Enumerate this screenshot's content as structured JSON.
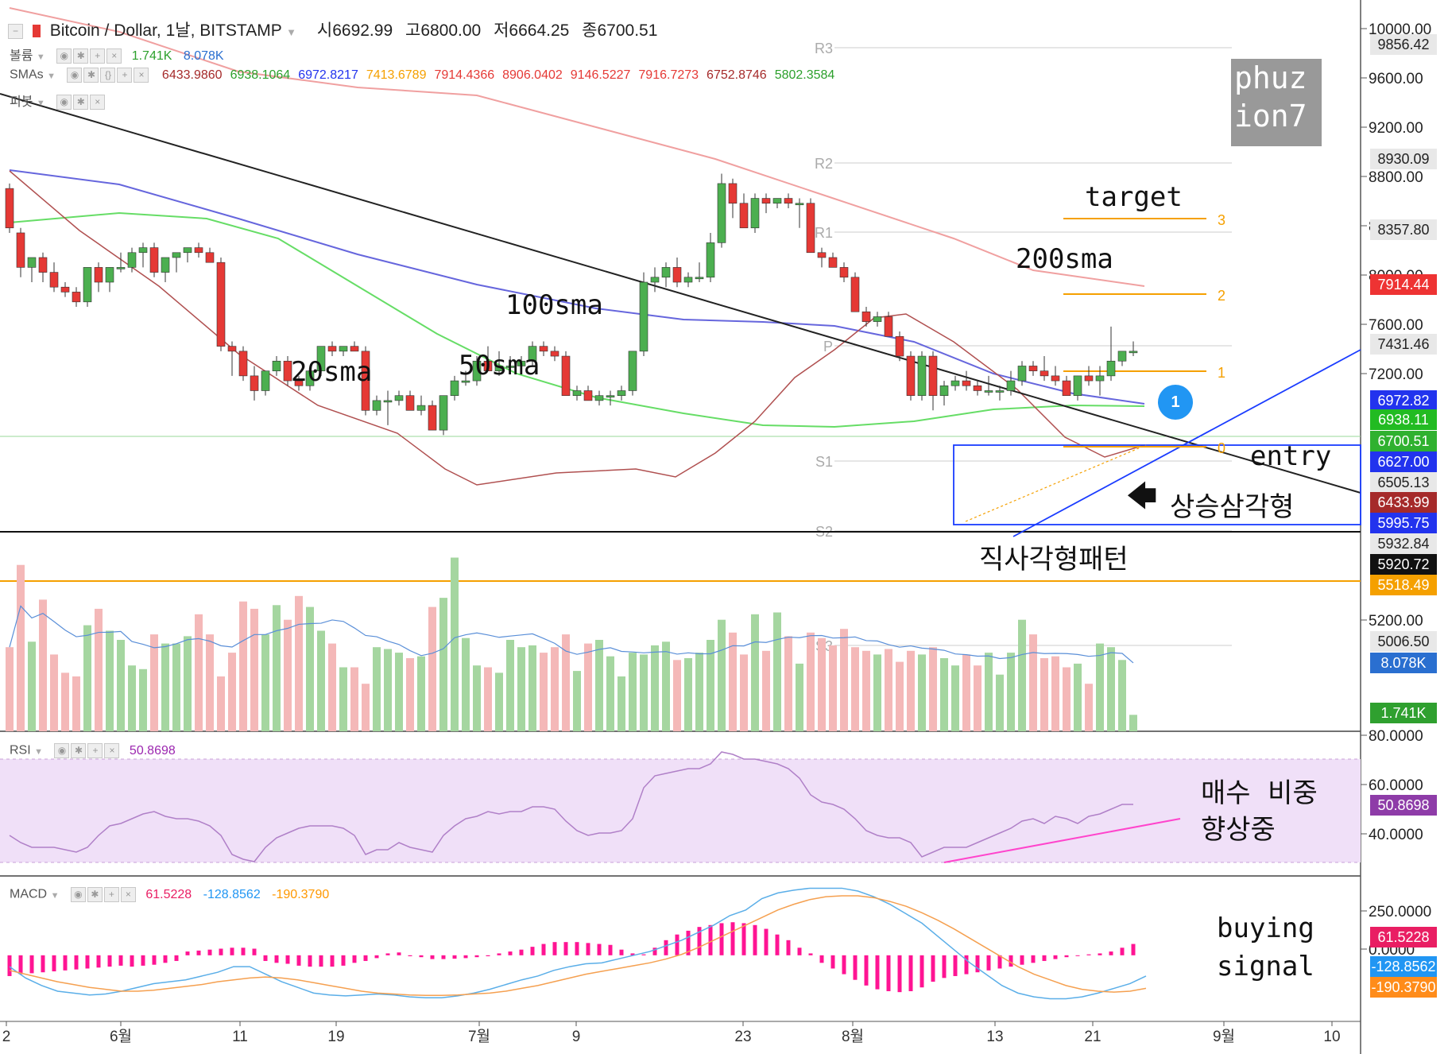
{
  "header": {
    "symbol": "Bitcoin / Dollar, 1날, BITSTAMP",
    "open_label": "시",
    "open": "6692.99",
    "high_label": "고",
    "high": "6800.00",
    "low_label": "저",
    "low": "6664.25",
    "close_label": "종",
    "close": "6700.51",
    "volume_label": "볼륨",
    "volume_a": "1.741K",
    "volume_b": "8.078K",
    "sma_label": "SMAs",
    "sma_values": [
      "6433.9860",
      "6938.1064",
      "6972.8217",
      "7413.6789",
      "7914.4366",
      "8906.0402",
      "9146.5227",
      "7916.7273",
      "6752.8746",
      "5802.3584"
    ],
    "pivot_label": "피봇",
    "rsi_label": "RSI",
    "rsi_value": "50.8698",
    "macd_label": "MACD",
    "macd_a": "61.5228",
    "macd_b": "-128.8562",
    "macd_c": "-190.3790"
  },
  "colors": {
    "up": "#4caf50",
    "down": "#e53935",
    "sma20": "#b05050",
    "sma50": "#66dd66",
    "sma100": "#6666dd",
    "sma200": "#f0a0a0",
    "rsi": "#b080c8",
    "macd_hist": "#ff1493",
    "macd_line": "#5aaee8",
    "signal_line": "#f5a050",
    "blue_trend": "#1a3cff",
    "orange_level": "#f5a000"
  },
  "price_axis": {
    "ticks": [
      "10000.00",
      "9600.00",
      "9200.00",
      "8800.00",
      "8400.00",
      "8000.00",
      "7600.00",
      "7200.00",
      "5200.00"
    ],
    "labels": [
      {
        "text": "9856.42",
        "bg": "#e8e8e8",
        "fg": "#222"
      },
      {
        "text": "8930.09",
        "bg": "#e8e8e8",
        "fg": "#222"
      },
      {
        "text": "8357.80",
        "bg": "#e8e8e8",
        "fg": "#222"
      },
      {
        "text": "7914.44",
        "bg": "#ee3333",
        "fg": "#fff"
      },
      {
        "text": "7431.46",
        "bg": "#e8e8e8",
        "fg": "#222"
      },
      {
        "text": "6972.82",
        "bg": "#2233ee",
        "fg": "#fff"
      },
      {
        "text": "6938.11",
        "bg": "#22bb22",
        "fg": "#fff"
      },
      {
        "text": "6700.51",
        "bg": "#2fb12f",
        "fg": "#fff"
      },
      {
        "text": "6627.00",
        "bg": "#2233ee",
        "fg": "#fff"
      },
      {
        "text": "6505.13",
        "bg": "#e8e8e8",
        "fg": "#222"
      },
      {
        "text": "6433.99",
        "bg": "#a52a2a",
        "fg": "#fff"
      },
      {
        "text": "5995.75",
        "bg": "#2233ee",
        "fg": "#fff"
      },
      {
        "text": "5932.84",
        "bg": "#e8e8e8",
        "fg": "#222"
      },
      {
        "text": "5920.72",
        "bg": "#111111",
        "fg": "#fff"
      },
      {
        "text": "5518.49",
        "bg": "#f5a000",
        "fg": "#fff"
      },
      {
        "text": "5006.50",
        "bg": "#e8e8e8",
        "fg": "#222"
      },
      {
        "text": "8.078K",
        "bg": "#2a6fd0",
        "fg": "#fff"
      },
      {
        "text": "1.741K",
        "bg": "#2fa02f",
        "fg": "#fff"
      }
    ]
  },
  "rsi_axis": {
    "ticks": [
      "80.0000",
      "60.0000",
      "40.0000"
    ],
    "badge": "50.8698"
  },
  "macd_axis": {
    "ticks": [
      "250.0000",
      "0.0000"
    ],
    "badges": [
      "61.5228",
      "-128.8562",
      "-190.3790"
    ]
  },
  "x_axis": {
    "ticks": [
      "2",
      "6월",
      "11",
      "19",
      "7월",
      "9",
      "23",
      "8월",
      "13",
      "21",
      "9월",
      "10"
    ]
  },
  "pivots": [
    "R3",
    "R2",
    "R1",
    "P",
    "S1",
    "S2",
    "S3"
  ],
  "fib_levels": [
    "3",
    "2",
    "1",
    "0"
  ],
  "annotations": {
    "watermark": [
      "phuz",
      "ion7"
    ],
    "target": "target",
    "sma200": "200sma",
    "sma100": "100sma",
    "sma50": "50sma",
    "sma20": "20sma",
    "entry": "entry",
    "ascending_triangle": "상승삼각형",
    "rectangle": "직사각형패턴",
    "buy_weight_1": "매수  비중",
    "buy_weight_2": "향상중",
    "buying_1": "buying",
    "buying_2": "signal",
    "circle": "1"
  },
  "chart_data": [
    {
      "type": "candlestick",
      "title": "Bitcoin / Dollar, 1날, BITSTAMP",
      "ylim": [
        4700,
        10100
      ],
      "candles": [
        [
          8350,
          8400,
          7900,
          7950
        ],
        [
          7900,
          7950,
          7450,
          7550
        ],
        [
          7550,
          7650,
          7400,
          7650
        ],
        [
          7650,
          7700,
          7400,
          7500
        ],
        [
          7500,
          7600,
          7300,
          7350
        ],
        [
          7350,
          7400,
          7250,
          7300
        ],
        [
          7300,
          7350,
          7150,
          7200
        ],
        [
          7200,
          7550,
          7150,
          7550
        ],
        [
          7550,
          7600,
          7300,
          7400
        ],
        [
          7400,
          7550,
          7300,
          7550
        ],
        [
          7550,
          7700,
          7500,
          7550
        ],
        [
          7550,
          7750,
          7500,
          7700
        ],
        [
          7700,
          7800,
          7550,
          7750
        ],
        [
          7750,
          7800,
          7450,
          7500
        ],
        [
          7500,
          7650,
          7400,
          7650
        ],
        [
          7650,
          7700,
          7500,
          7700
        ],
        [
          7700,
          7750,
          7600,
          7750
        ],
        [
          7750,
          7800,
          7650,
          7700
        ],
        [
          7700,
          7750,
          7600,
          7600
        ],
        [
          7600,
          7650,
          6700,
          6750
        ],
        [
          6750,
          6800,
          6450,
          6700
        ],
        [
          6700,
          6750,
          6400,
          6450
        ],
        [
          6450,
          6550,
          6200,
          6300
        ],
        [
          6300,
          6500,
          6250,
          6500
        ],
        [
          6500,
          6650,
          6450,
          6600
        ],
        [
          6600,
          6650,
          6350,
          6400
        ],
        [
          6400,
          6450,
          6300,
          6350
        ],
        [
          6350,
          6550,
          6300,
          6500
        ],
        [
          6500,
          6750,
          6450,
          6750
        ],
        [
          6750,
          6800,
          6650,
          6700
        ],
        [
          6700,
          6750,
          6650,
          6750
        ],
        [
          6750,
          6800,
          6700,
          6700
        ],
        [
          6700,
          6750,
          6050,
          6100
        ],
        [
          6100,
          6250,
          6050,
          6200
        ],
        [
          6200,
          6300,
          5950,
          6200
        ],
        [
          6200,
          6300,
          6150,
          6250
        ],
        [
          6250,
          6300,
          6100,
          6100
        ],
        [
          6100,
          6250,
          6050,
          6150
        ],
        [
          6150,
          6200,
          5900,
          5900
        ],
        [
          5900,
          6250,
          5850,
          6250
        ],
        [
          6250,
          6450,
          6200,
          6400
        ],
        [
          6400,
          6500,
          6350,
          6400
        ],
        [
          6400,
          6650,
          6350,
          6600
        ],
        [
          6600,
          6750,
          6500,
          6500
        ],
        [
          6500,
          6700,
          6450,
          6550
        ],
        [
          6550,
          6650,
          6500,
          6550
        ],
        [
          6550,
          6650,
          6500,
          6600
        ],
        [
          6600,
          6800,
          6550,
          6750
        ],
        [
          6750,
          6800,
          6650,
          6700
        ],
        [
          6700,
          6750,
          6600,
          6650
        ],
        [
          6650,
          6700,
          6250,
          6250
        ],
        [
          6250,
          6350,
          6200,
          6300
        ],
        [
          6300,
          6350,
          6200,
          6200
        ],
        [
          6200,
          6300,
          6150,
          6250
        ],
        [
          6250,
          6300,
          6150,
          6250
        ],
        [
          6250,
          6350,
          6200,
          6300
        ],
        [
          6300,
          6700,
          6250,
          6700
        ],
        [
          6700,
          7500,
          6650,
          7400
        ],
        [
          7400,
          7550,
          7300,
          7450
        ],
        [
          7450,
          7600,
          7350,
          7550
        ],
        [
          7550,
          7650,
          7350,
          7400
        ],
        [
          7400,
          7500,
          7350,
          7450
        ],
        [
          7450,
          7600,
          7400,
          7450
        ],
        [
          7450,
          7900,
          7400,
          7800
        ],
        [
          7800,
          8500,
          7750,
          8400
        ],
        [
          8400,
          8450,
          8050,
          8200
        ],
        [
          8200,
          8300,
          7950,
          7950
        ],
        [
          7950,
          8300,
          7900,
          8250
        ],
        [
          8250,
          8300,
          8100,
          8200
        ],
        [
          8200,
          8250,
          8150,
          8250
        ],
        [
          8250,
          8300,
          8150,
          8200
        ],
        [
          8200,
          8250,
          7950,
          8200
        ],
        [
          8200,
          8250,
          7700,
          7700
        ],
        [
          7700,
          7750,
          7550,
          7650
        ],
        [
          7650,
          7700,
          7550,
          7550
        ],
        [
          7550,
          7600,
          7400,
          7450
        ],
        [
          7450,
          7500,
          7100,
          7100
        ],
        [
          7100,
          7150,
          6950,
          7000
        ],
        [
          7000,
          7100,
          6950,
          7050
        ],
        [
          7050,
          7100,
          6850,
          6850
        ],
        [
          6850,
          6900,
          6600,
          6650
        ],
        [
          6650,
          6700,
          6200,
          6250
        ],
        [
          6250,
          6700,
          6200,
          6650
        ],
        [
          6650,
          6700,
          6100,
          6250
        ],
        [
          6250,
          6400,
          6150,
          6350
        ],
        [
          6350,
          6450,
          6300,
          6400
        ],
        [
          6400,
          6500,
          6300,
          6350
        ],
        [
          6350,
          6400,
          6250,
          6300
        ],
        [
          6300,
          6450,
          6250,
          6300
        ],
        [
          6300,
          6350,
          6200,
          6300
        ],
        [
          6300,
          6500,
          6250,
          6400
        ],
        [
          6400,
          6600,
          6350,
          6550
        ],
        [
          6550,
          6600,
          6450,
          6500
        ],
        [
          6500,
          6650,
          6400,
          6450
        ],
        [
          6450,
          6550,
          6350,
          6400
        ],
        [
          6400,
          6450,
          6250,
          6250
        ],
        [
          6250,
          6450,
          6200,
          6450
        ],
        [
          6450,
          6550,
          6350,
          6400
        ],
        [
          6400,
          6550,
          6250,
          6450
        ],
        [
          6450,
          6950,
          6400,
          6600
        ],
        [
          6600,
          6700,
          6550,
          6700
        ],
        [
          6700,
          6800,
          6650,
          6700
        ]
      ]
    },
    {
      "type": "bar",
      "title": "볼륨",
      "values": [
        4.6,
        9.1,
        4.9,
        7.2,
        4.2,
        3.2,
        3.0,
        5.8,
        6.7,
        5.5,
        5.0,
        3.6,
        3.4,
        5.3,
        4.8,
        4.8,
        5.2,
        6.4,
        5.3,
        3.0,
        4.3,
        7.1,
        6.7,
        5.3,
        6.9,
        6.1,
        7.4,
        6.8,
        5.5,
        4.8,
        3.5,
        3.5,
        2.6,
        4.6,
        4.5,
        4.3,
        4.0,
        4.1,
        6.8,
        7.3,
        9.5,
        5.1,
        3.6,
        3.5,
        3.2,
        5.0,
        4.6,
        4.7,
        4.3,
        4.6,
        5.3,
        3.3,
        4.8,
        5.0,
        4.1,
        3.0,
        4.3,
        4.2,
        4.7,
        4.9,
        3.9,
        4.0,
        4.3,
        5.0,
        6.1,
        5.4,
        4.2,
        6.4,
        4.4,
        6.5,
        5.2,
        3.7,
        5.4,
        5.1,
        4.7,
        5.6,
        4.6,
        4.4,
        4.2,
        4.5,
        3.8,
        4.4,
        4.2,
        4.6,
        4.0,
        3.6,
        4.2,
        3.6,
        4.3,
        3.1,
        4.3,
        6.1,
        5.3,
        4.0,
        4.1,
        3.5,
        3.7,
        2.6,
        4.8,
        4.6,
        3.9,
        0.9
      ],
      "ylim": [
        0,
        10
      ]
    },
    {
      "type": "line",
      "title": "RSI",
      "values": [
        38,
        35,
        33,
        33,
        33,
        32,
        31,
        33,
        38,
        42,
        43,
        45,
        47,
        48,
        46,
        45,
        45,
        44,
        42,
        38,
        30,
        28,
        27,
        33,
        37,
        39,
        41,
        42,
        42,
        42,
        41,
        38,
        30,
        32,
        32,
        35,
        33,
        32,
        31,
        38,
        42,
        45,
        46,
        48,
        47,
        48,
        48,
        50,
        50,
        49,
        44,
        40,
        38,
        39,
        39,
        40,
        45,
        58,
        63,
        64,
        65,
        66,
        66,
        68,
        73,
        72,
        70,
        70,
        69,
        68,
        66,
        62,
        55,
        52,
        51,
        49,
        45,
        40,
        38,
        37,
        37,
        35,
        29,
        31,
        33,
        33,
        33,
        35,
        37,
        39,
        41,
        44,
        45,
        43,
        46,
        45,
        43,
        46,
        47,
        49,
        51,
        51
      ],
      "ylim": [
        20,
        80
      ]
    },
    {
      "type": "bar",
      "title": "MACD",
      "histogram": [
        -110,
        -100,
        -95,
        -90,
        -85,
        -80,
        -75,
        -70,
        -65,
        -60,
        -55,
        -60,
        -55,
        -50,
        -40,
        -30,
        20,
        25,
        30,
        35,
        40,
        40,
        35,
        -30,
        -40,
        -45,
        -55,
        -60,
        -60,
        -60,
        -55,
        -40,
        -30,
        -15,
        10,
        15,
        -5,
        -10,
        -20,
        -20,
        -18,
        -15,
        -10,
        -5,
        10,
        20,
        30,
        45,
        60,
        70,
        70,
        70,
        65,
        60,
        55,
        30,
        10,
        5,
        40,
        80,
        110,
        130,
        150,
        160,
        170,
        175,
        170,
        160,
        140,
        110,
        80,
        40,
        10,
        -40,
        -70,
        -100,
        -130,
        -160,
        -180,
        -190,
        -195,
        -190,
        -170,
        -140,
        -120,
        -110,
        -100,
        -90,
        -80,
        -70,
        -60,
        -50,
        -40,
        -30,
        -20,
        -10,
        0,
        5,
        10,
        20,
        40,
        60
      ],
      "macd": [
        -60,
        -120,
        -160,
        -190,
        -200,
        -210,
        -205,
        -190,
        -170,
        -150,
        -140,
        -130,
        -110,
        -90,
        -60,
        -60,
        -100,
        -140,
        -170,
        -200,
        -210,
        -215,
        -210,
        -205,
        -210,
        -220,
        -225,
        -225,
        -215,
        -200,
        -180,
        -155,
        -130,
        -110,
        -80,
        -60,
        -45,
        -40,
        -20,
        0,
        20,
        50,
        80,
        120,
        160,
        210,
        240,
        300,
        330,
        345,
        355,
        355,
        355,
        340,
        310,
        270,
        220,
        170,
        100,
        30,
        -40,
        -100,
        -160,
        -200,
        -220,
        -230,
        -230,
        -220,
        -200,
        -175,
        -150,
        -110
      ],
      "signal": [
        -80,
        -100,
        -120,
        -140,
        -155,
        -170,
        -180,
        -190,
        -190,
        -185,
        -175,
        -165,
        -155,
        -140,
        -130,
        -120,
        -115,
        -120,
        -130,
        -145,
        -160,
        -175,
        -190,
        -200,
        -205,
        -210,
        -212,
        -212,
        -210,
        -205,
        -200,
        -190,
        -175,
        -160,
        -140,
        -120,
        -100,
        -85,
        -70,
        -55,
        -40,
        -20,
        5,
        40,
        80,
        120,
        160,
        200,
        240,
        270,
        295,
        310,
        315,
        315,
        305,
        285,
        260,
        225,
        185,
        140,
        90,
        40,
        -10,
        -60,
        -100,
        -130,
        -160,
        -180,
        -190,
        -195,
        -190,
        -175
      ],
      "ylim": [
        -350,
        420
      ]
    }
  ]
}
